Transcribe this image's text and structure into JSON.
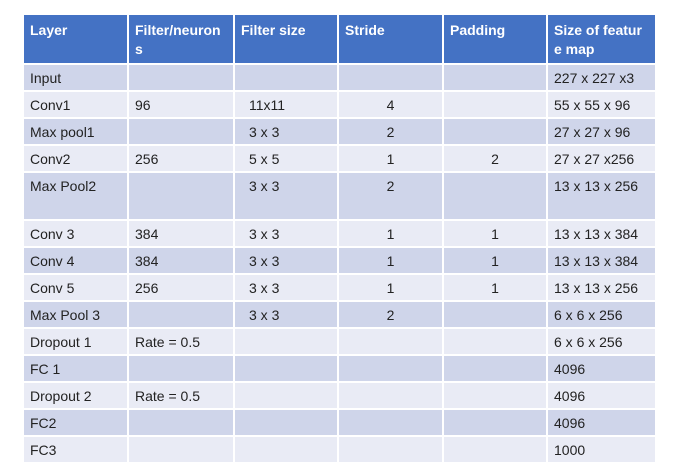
{
  "header": {
    "layer": "Layer",
    "filters": "Filter/neurons",
    "filter_size": "Filter size",
    "stride": "Stride",
    "padding": "Padding",
    "feature_map": "Size of feature map"
  },
  "rows": [
    {
      "layer": "Input",
      "filters": "",
      "filter_size": "",
      "stride": "",
      "padding": "",
      "feature_map": "227 x 227 x3"
    },
    {
      "layer": "Conv1",
      "filters": "96",
      "filter_size": "11x11",
      "stride": "4",
      "padding": "",
      "feature_map": "55 x 55 x 96"
    },
    {
      "layer": "Max pool1",
      "filters": "",
      "filter_size": "3 x 3",
      "stride": "2",
      "padding": "",
      "feature_map": "27 x 27 x 96"
    },
    {
      "layer": "Conv2",
      "filters": "256",
      "filter_size": "5 x 5",
      "stride": "1",
      "padding": "2",
      "feature_map": "27 x 27 x256"
    },
    {
      "layer": "Max Pool2",
      "filters": "",
      "filter_size": "3 x 3",
      "stride": "2",
      "padding": "",
      "feature_map": "13 x 13 x 256"
    },
    {
      "layer": "Conv 3",
      "filters": "384",
      "filter_size": "3 x 3",
      "stride": "1",
      "padding": "1",
      "feature_map": "13 x 13 x 384"
    },
    {
      "layer": "Conv 4",
      "filters": "384",
      "filter_size": "3 x 3",
      "stride": "1",
      "padding": "1",
      "feature_map": "13 x 13 x 384"
    },
    {
      "layer": "Conv 5",
      "filters": "256",
      "filter_size": "3 x 3",
      "stride": "1",
      "padding": "1",
      "feature_map": "13 x 13 x 256"
    },
    {
      "layer": "Max Pool 3",
      "filters": "",
      "filter_size": "3 x 3",
      "stride": "2",
      "padding": "",
      "feature_map": "6 x 6 x 256"
    },
    {
      "layer": "Dropout 1",
      "filters": "Rate = 0.5",
      "filter_size": "",
      "stride": "",
      "padding": "",
      "feature_map": "6 x 6 x 256"
    },
    {
      "layer": "FC 1",
      "filters": "",
      "filter_size": "",
      "stride": "",
      "padding": "",
      "feature_map": "4096"
    },
    {
      "layer": "Dropout 2",
      "filters": "Rate = 0.5",
      "filter_size": "",
      "stride": "",
      "padding": "",
      "feature_map": "4096"
    },
    {
      "layer": "FC2",
      "filters": "",
      "filter_size": "",
      "stride": "",
      "padding": "",
      "feature_map": "4096"
    },
    {
      "layer": "FC3",
      "filters": "",
      "filter_size": "",
      "stride": "",
      "padding": "",
      "feature_map": "1000"
    }
  ],
  "colors": {
    "header_bg": "#4472c4",
    "row_dark": "#cfd5ea",
    "row_light": "#e9ebf5"
  }
}
